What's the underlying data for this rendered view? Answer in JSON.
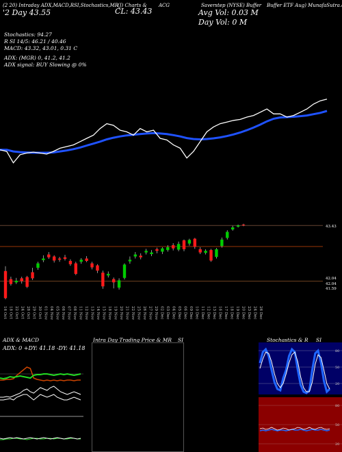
{
  "header": {
    "line1": [
      "(2 20) Intraday ADX,MACD,R",
      "SI,Stochastics,MR",
      "(J) Charts &",
      "ACG",
      "Saverstep (NYSE) Buffer",
      "Buffer ETF Aug) MunafaSutra.com"
    ],
    "price_lines": [
      "CL: 43.43",
      "",
      "",
      ""
    ],
    "day_line": "'2 Day  43.55",
    "avg_vol": "Avg Vol: 0.03  M",
    "day_vol": "Day Vol: 0   M",
    "stoch": "Stochastics: 94.27",
    "rsi": "R          SI 14/5: 46.21 / 40.46",
    "macd": "MACD: 43.32, 43.01, 0.31 C",
    "adx": "ADX:                        (MGR) 0, 41.2, 41.2",
    "adx_signal": "ADX  signal:                       BUY Slowing @ 0%"
  },
  "chart_data": {
    "type": "candlestick",
    "price_labels": [
      "43.43",
      "42.04",
      "42.04",
      "41.59"
    ],
    "x_labels": [
      "16 Oct",
      "18 Oct",
      "22 Oct",
      "24 Oct",
      "28 Oct",
      "29 Oct",
      "30 Oct",
      "01 Nov",
      "04 Nov",
      "05 Nov",
      "06 Nov",
      "07 Nov",
      "08 Nov",
      "11 Nov",
      "12 Nov",
      "13 Nov",
      "14 Nov",
      "15 Nov",
      "18 Nov",
      "19 Nov",
      "20 Nov",
      "21 Nov",
      "22 Nov",
      "25 Nov",
      "26 Nov",
      "27 Nov",
      "29 Nov",
      "02 Dec",
      "03 Dec",
      "04 Dec",
      "05 Dec",
      "06 Dec",
      "09 Dec",
      "10 Dec",
      "11 Dec",
      "12 Dec",
      "13 Dec",
      "16 Dec",
      "17 Dec",
      "18 Dec",
      "19 Dec",
      "20 Dec",
      "23 Dec",
      "24 Dec",
      "26 Dec"
    ],
    "candles": [
      {
        "o": 42.3,
        "c": 41.63,
        "h": 42.42,
        "l": 41.6
      },
      {
        "o": 42.1,
        "c": 41.98,
        "h": 42.16,
        "l": 41.94
      },
      {
        "o": 42.02,
        "c": 42.06,
        "h": 42.13,
        "l": 41.98
      },
      {
        "o": 42.12,
        "c": 42.05,
        "h": 42.16,
        "l": 41.99
      },
      {
        "o": 42.15,
        "c": 41.91,
        "h": 42.18,
        "l": 41.88
      },
      {
        "o": 42.27,
        "c": 42.12,
        "h": 42.38,
        "l": 42.08
      },
      {
        "o": 42.38,
        "c": 42.49,
        "h": 42.53,
        "l": 42.33
      },
      {
        "o": 42.57,
        "c": 42.61,
        "h": 42.69,
        "l": 42.52
      },
      {
        "o": 42.71,
        "c": 42.64,
        "h": 42.77,
        "l": 42.6
      },
      {
        "o": 42.66,
        "c": 42.56,
        "h": 42.69,
        "l": 42.51
      },
      {
        "o": 42.61,
        "c": 42.58,
        "h": 42.65,
        "l": 42.53
      },
      {
        "o": 42.64,
        "c": 42.6,
        "h": 42.7,
        "l": 42.56
      },
      {
        "o": 42.55,
        "c": 42.47,
        "h": 42.59,
        "l": 42.43
      },
      {
        "o": 42.49,
        "c": 42.23,
        "h": 42.53,
        "l": 42.2
      },
      {
        "o": 42.53,
        "c": 42.58,
        "h": 42.62,
        "l": 42.48
      },
      {
        "o": 42.61,
        "c": 42.55,
        "h": 42.67,
        "l": 42.52
      },
      {
        "o": 42.49,
        "c": 42.39,
        "h": 42.53,
        "l": 42.34
      },
      {
        "o": 42.44,
        "c": 42.31,
        "h": 42.47,
        "l": 42.25
      },
      {
        "o": 42.26,
        "c": 41.92,
        "h": 42.31,
        "l": 41.86
      },
      {
        "o": 42.19,
        "c": 42.23,
        "h": 42.29,
        "l": 42.14
      },
      {
        "o": 42.1,
        "c": 42.02,
        "h": 42.14,
        "l": 41.87
      },
      {
        "o": 41.89,
        "c": 42.07,
        "h": 42.12,
        "l": 41.84
      },
      {
        "o": 42.13,
        "c": 42.46,
        "h": 42.49,
        "l": 42.09
      },
      {
        "o": 42.54,
        "c": 42.58,
        "h": 42.66,
        "l": 42.48
      },
      {
        "o": 42.66,
        "c": 42.71,
        "h": 42.77,
        "l": 42.61
      },
      {
        "o": 42.68,
        "c": 42.64,
        "h": 42.74,
        "l": 42.59
      },
      {
        "o": 42.76,
        "c": 42.8,
        "h": 42.85,
        "l": 42.71
      },
      {
        "o": 42.72,
        "c": 42.76,
        "h": 42.82,
        "l": 42.67
      },
      {
        "o": 42.84,
        "c": 42.8,
        "h": 42.88,
        "l": 42.74
      },
      {
        "o": 42.78,
        "c": 42.86,
        "h": 42.89,
        "l": 42.72
      },
      {
        "o": 42.82,
        "c": 42.89,
        "h": 42.94,
        "l": 42.78
      },
      {
        "o": 42.94,
        "c": 42.86,
        "h": 42.99,
        "l": 42.81
      },
      {
        "o": 42.83,
        "c": 42.97,
        "h": 43.03,
        "l": 42.79
      },
      {
        "o": 43.06,
        "c": 42.84,
        "h": 43.08,
        "l": 42.79
      },
      {
        "o": 42.98,
        "c": 43.07,
        "h": 43.1,
        "l": 42.93
      },
      {
        "o": 43.1,
        "c": 42.9,
        "h": 43.12,
        "l": 42.85
      },
      {
        "o": 42.84,
        "c": 42.76,
        "h": 42.89,
        "l": 42.72
      },
      {
        "o": 42.75,
        "c": 42.8,
        "h": 42.84,
        "l": 42.71
      },
      {
        "o": 42.82,
        "c": 42.56,
        "h": 42.85,
        "l": 42.53
      },
      {
        "o": 42.65,
        "c": 42.84,
        "h": 42.87,
        "l": 42.61
      },
      {
        "o": 42.92,
        "c": 43.08,
        "h": 43.13,
        "l": 42.88
      },
      {
        "o": 43.12,
        "c": 43.27,
        "h": 43.31,
        "l": 43.08
      },
      {
        "o": 43.33,
        "c": 43.38,
        "h": 43.42,
        "l": 43.3
      },
      {
        "o": 43.4,
        "c": 43.43,
        "h": 43.45,
        "l": 43.38
      },
      {
        "o": 43.45,
        "c": 43.43,
        "h": 43.47,
        "l": 43.41
      }
    ],
    "price_line": [
      41.95,
      41.9,
      41.55,
      41.8,
      41.85,
      41.88,
      41.85,
      41.82,
      41.9,
      42.0,
      42.05,
      42.1,
      42.2,
      42.3,
      42.4,
      42.6,
      42.75,
      42.7,
      42.55,
      42.5,
      42.4,
      42.6,
      42.5,
      42.55,
      42.3,
      42.25,
      42.1,
      42.0,
      41.7,
      41.9,
      42.2,
      42.5,
      42.65,
      42.75,
      42.8,
      42.85,
      42.88,
      42.95,
      43.0,
      43.1,
      43.2,
      43.05,
      43.05,
      42.95,
      43.0,
      43.1,
      43.2,
      43.35,
      43.45,
      43.5
    ],
    "ma_line": [
      41.95,
      41.95,
      41.9,
      41.88,
      41.87,
      41.86,
      41.86,
      41.86,
      41.87,
      41.9,
      41.93,
      41.97,
      42.02,
      42.08,
      42.14,
      42.2,
      42.27,
      42.32,
      42.36,
      42.39,
      42.41,
      42.43,
      42.45,
      42.46,
      42.45,
      42.43,
      42.4,
      42.36,
      42.31,
      42.28,
      42.27,
      42.28,
      42.3,
      42.33,
      42.37,
      42.42,
      42.48,
      42.55,
      42.63,
      42.72,
      42.82,
      42.9,
      42.94,
      42.95,
      42.96,
      42.98,
      43.0,
      43.04,
      43.08,
      43.14
    ]
  },
  "panels": {
    "adx_title": "ADX  & MACD",
    "adx_values": "ADX: 0   +DY: 41.18   -DY: 41.18",
    "intraday_title": "Intra  Day Trading Price  & MR",
    "intraday_si": "SI",
    "stoch_title": "Stochastics & R",
    "stoch_si": "SI",
    "stoch_levels": [
      "80",
      "50",
      "20"
    ],
    "rsi_levels": [
      "80",
      "50",
      "20"
    ]
  },
  "colors": {
    "up": "#00cc00",
    "down": "#ff1a1a",
    "ma": "#1f52ff",
    "price_line": "#ffffff",
    "rsi_bg": "#8b0000",
    "stoch_bg": "#000066",
    "grid": "#8a4a1a"
  }
}
